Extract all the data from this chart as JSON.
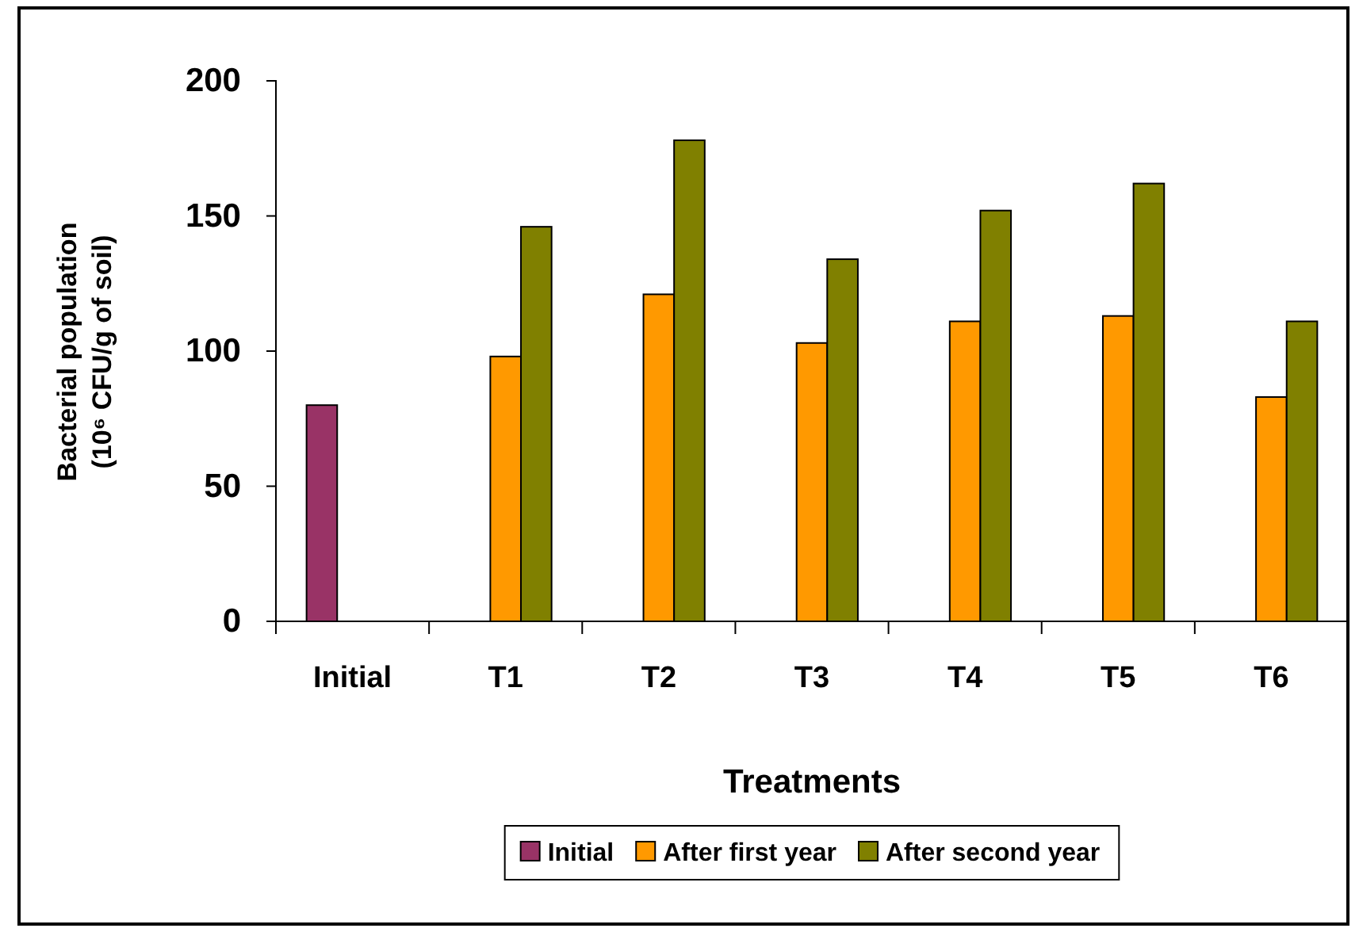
{
  "chart_data": {
    "type": "bar",
    "xlabel": "Treatments",
    "ylabel": "Bacterial population\n(10⁶ CFU/g of soil)",
    "categories": [
      "Initial",
      "T1",
      "T2",
      "T3",
      "T4",
      "T5",
      "T6"
    ],
    "series": [
      {
        "name": "Initial",
        "color": "#993366",
        "values": [
          80,
          null,
          null,
          null,
          null,
          null,
          null
        ]
      },
      {
        "name": "After first year",
        "color": "#ff9900",
        "values": [
          null,
          98,
          121,
          103,
          111,
          113,
          83
        ]
      },
      {
        "name": "After second year",
        "color": "#808000",
        "values": [
          null,
          146,
          178,
          134,
          152,
          162,
          111
        ]
      }
    ],
    "ylim": [
      0,
      200
    ],
    "yticks": [
      0,
      50,
      100,
      150,
      200
    ],
    "grid": false,
    "legend": "bottom"
  }
}
